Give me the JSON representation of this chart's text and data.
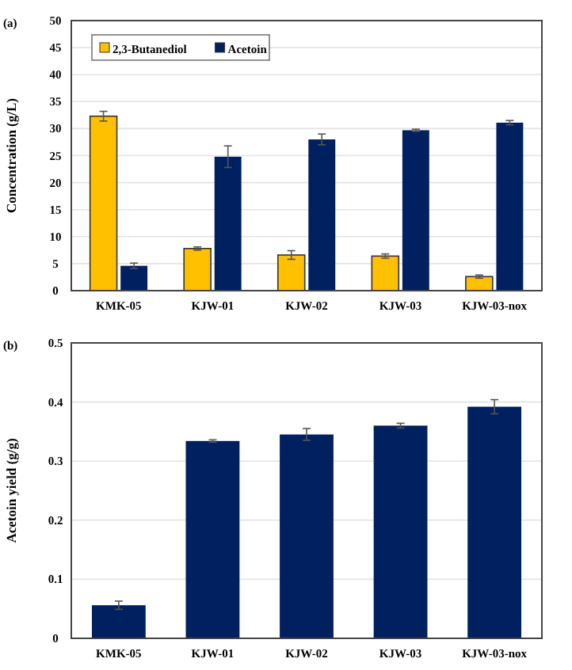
{
  "chart_data": [
    {
      "type": "bar",
      "ylabel": "Concentration (g/L)",
      "annotations": [
        "(a)"
      ],
      "categories": [
        "KMK-05",
        "KJW-01",
        "KJW-02",
        "KJW-03",
        "KJW-03-nox"
      ],
      "series": [
        {
          "name": "2,3-Butanediol",
          "color": "#ffc000",
          "values": [
            32.3,
            7.8,
            6.6,
            6.4,
            2.6
          ],
          "errors": [
            0.9,
            0.3,
            0.8,
            0.4,
            0.3
          ]
        },
        {
          "name": "Acetoin",
          "color": "#002060",
          "values": [
            4.6,
            24.8,
            28.0,
            29.7,
            31.1
          ],
          "errors": [
            0.5,
            2.0,
            1.0,
            0.2,
            0.4
          ]
        }
      ],
      "ylim": [
        0,
        50
      ],
      "yticks": [
        0,
        5,
        10,
        15,
        20,
        25,
        30,
        35,
        40,
        45,
        50
      ],
      "grid": "y",
      "legend": "top left"
    },
    {
      "type": "bar",
      "ylabel": "Acetoin yield (g/g)",
      "annotations": [
        "(b)"
      ],
      "categories": [
        "KMK-05",
        "KJW-01",
        "KJW-02",
        "KJW-03",
        "KJW-03-nox"
      ],
      "series": [
        {
          "color": "#002060",
          "values": [
            0.056,
            0.334,
            0.345,
            0.36,
            0.392
          ],
          "errors": [
            0.007,
            0.002,
            0.01,
            0.004,
            0.012
          ]
        }
      ],
      "ylim": [
        0,
        0.5
      ],
      "yticks": [
        0,
        0.1,
        0.2,
        0.3,
        0.4,
        0.5
      ],
      "grid": "y"
    }
  ]
}
